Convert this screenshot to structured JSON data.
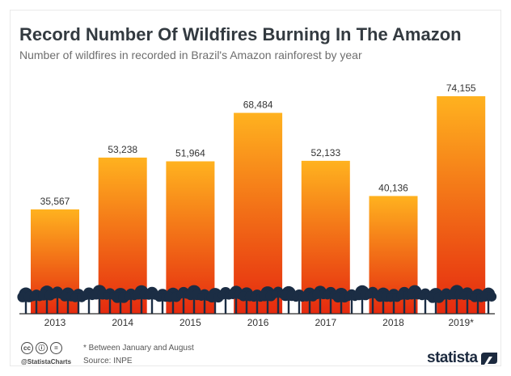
{
  "header": {
    "title": "Record Number Of Wildfires Burning In The Amazon",
    "subtitle": "Number of wildfires in recorded in Brazil's Amazon rainforest by year"
  },
  "chart_data": {
    "type": "bar",
    "title": "Record Number Of Wildfires Burning In The Amazon",
    "subtitle": "Number of wildfires in recorded in Brazil's Amazon rainforest by year",
    "categories": [
      "2013",
      "2014",
      "2015",
      "2016",
      "2017",
      "2018",
      "2019*"
    ],
    "values": [
      35567,
      53238,
      51964,
      68484,
      52133,
      40136,
      74155
    ],
    "value_labels": [
      "35,567",
      "53,238",
      "51,964",
      "68,484",
      "52,133",
      "40,136",
      "74,155"
    ],
    "xlabel": "",
    "ylabel": "",
    "ylim": [
      0,
      74155
    ],
    "grid": false,
    "legend": "none"
  },
  "footer": {
    "note": "* Between January and August",
    "source": "Source: INPE",
    "handle": "@StatistaCharts",
    "brand": "statista",
    "license_icons": [
      "cc",
      "ⓘ",
      "="
    ]
  },
  "colors": {
    "bar_top": "#ffb21f",
    "bar_bottom": "#e52a0f",
    "trees": "#1b2d44",
    "title": "#333a40"
  }
}
